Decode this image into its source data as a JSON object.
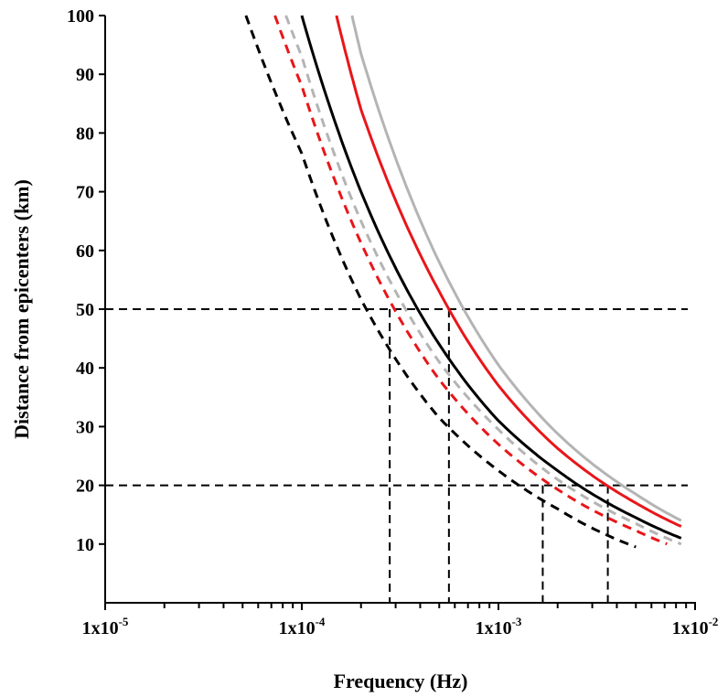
{
  "chart_data": {
    "type": "line",
    "xlabel": "Frequency (Hz)",
    "ylabel": "Distance from epicenters (km)",
    "x_scale": "log",
    "xlim": [
      1e-05,
      0.01
    ],
    "ylim": [
      0,
      100
    ],
    "grid": false,
    "legend": "none",
    "x_ticks": [
      {
        "value": 1e-05,
        "mantissa": "1x10",
        "exponent": "-5"
      },
      {
        "value": 0.0001,
        "mantissa": "1x10",
        "exponent": "-4"
      },
      {
        "value": 0.001,
        "mantissa": "1x10",
        "exponent": "-3"
      },
      {
        "value": 0.01,
        "mantissa": "1x10",
        "exponent": "-2"
      }
    ],
    "y_ticks": [
      "10",
      "20",
      "30",
      "40",
      "50",
      "60",
      "70",
      "80",
      "90",
      "100"
    ],
    "series": [
      {
        "color": "#000000",
        "dash": true,
        "x": [
          5.2e-05,
          0.0001,
          0.0002,
          0.0005,
          0.001,
          0.002,
          0.005
        ],
        "y": [
          100,
          76.5,
          51.7,
          31.5,
          22.5,
          16.0,
          9.5
        ]
      },
      {
        "color": "#e8161a",
        "dash": true,
        "x": [
          7.3e-05,
          0.0001,
          0.0002,
          0.0005,
          0.001,
          0.002,
          0.005,
          0.0072
        ],
        "y": [
          100,
          88.0,
          61.3,
          38.0,
          27.0,
          19.3,
          12.3,
          10.0
        ]
      },
      {
        "color": "#b4b4b4",
        "dash": true,
        "x": [
          8.3e-05,
          0.0001,
          0.0002,
          0.0005,
          0.001,
          0.002,
          0.005,
          0.0085
        ],
        "y": [
          100,
          93.0,
          65.0,
          41.0,
          29.5,
          21.0,
          13.5,
          10.0
        ]
      },
      {
        "color": "#000000",
        "dash": false,
        "x": [
          0.0001,
          0.0002,
          0.0005,
          0.001,
          0.002,
          0.005,
          0.0085
        ],
        "y": [
          100,
          70.0,
          44.0,
          31.0,
          22.5,
          14.5,
          11.0
        ]
      },
      {
        "color": "#e8161a",
        "dash": false,
        "x": [
          0.00015,
          0.0002,
          0.0005,
          0.001,
          0.002,
          0.005,
          0.0085
        ],
        "y": [
          100,
          84.0,
          53.0,
          37.0,
          26.3,
          17.0,
          13.0
        ]
      },
      {
        "color": "#b4b4b4",
        "dash": false,
        "x": [
          0.00018,
          0.0002,
          0.0005,
          0.001,
          0.002,
          0.005,
          0.0085
        ],
        "y": [
          100,
          93.5,
          58.0,
          40.5,
          28.8,
          18.5,
          14.0
        ]
      }
    ],
    "reference_lines": {
      "horizontal": [
        50,
        20
      ],
      "vertical": [
        {
          "x": 0.00028,
          "top": 50
        },
        {
          "x": 0.00056,
          "top": 50
        },
        {
          "x": 0.00168,
          "top": 20
        },
        {
          "x": 0.0036,
          "top": 20
        }
      ]
    }
  }
}
